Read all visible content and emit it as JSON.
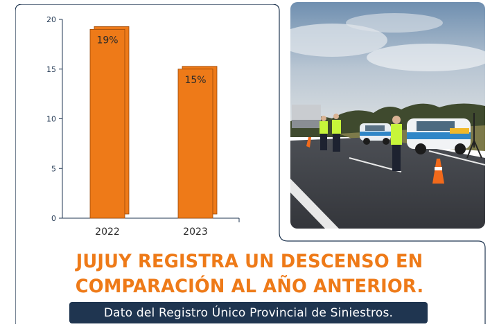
{
  "chart_data": {
    "type": "bar",
    "categories": [
      "2022",
      "2023"
    ],
    "values": [
      19,
      15
    ],
    "data_labels": [
      "19%",
      "15%"
    ],
    "yticks": [
      "0",
      "5",
      "10",
      "15",
      "20"
    ],
    "ylim": [
      0,
      20
    ],
    "title": "",
    "xlabel": "",
    "ylabel": "",
    "grid": false,
    "bar_color": "#ee7a18"
  },
  "headline": {
    "line1": "JUJUY REGISTRA UN DESCENSO EN",
    "line2": "COMPARACIÓN AL AÑO ANTERIOR."
  },
  "source_badge": "Dato del Registro Único Provincial de Siniestros.",
  "photo": {
    "subject": "road-checkpoint-photo"
  },
  "colors": {
    "accent": "#ee7a18",
    "badge_bg": "#1f3550",
    "frame": "#1f3550"
  }
}
